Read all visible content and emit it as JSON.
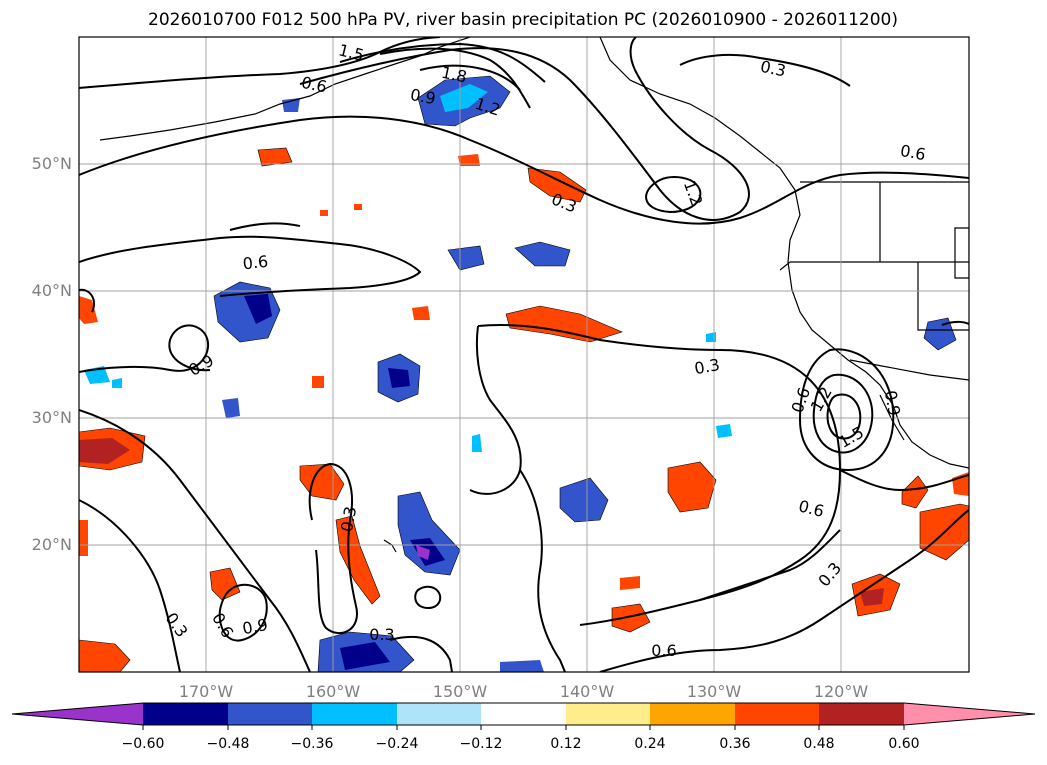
{
  "title": "2026010700 F012 500 hPa PV, river basin precipitation PC (2026010900 - 2026011200)",
  "lat_labels": [
    "50°N",
    "40°N",
    "30°N",
    "20°N"
  ],
  "lon_labels": [
    "170°W",
    "160°W",
    "150°W",
    "140°W",
    "130°W",
    "120°W"
  ],
  "contour_labels": [
    "0.3",
    "0.6",
    "0.9",
    "1.2",
    "1.5",
    "1.8"
  ],
  "colorbar": {
    "colors": [
      "#9933cc",
      "#00008b",
      "#3355cc",
      "#00bfff",
      "#aee3fa",
      "#ffffff",
      "#ffec8b",
      "#ffa500",
      "#ff4500",
      "#b22222",
      "#ff8fab"
    ],
    "tick_labels": [
      "−0.60",
      "−0.48",
      "−0.36",
      "−0.24",
      "−0.12",
      "0.12",
      "0.24",
      "0.36",
      "0.48",
      "0.60"
    ]
  },
  "chart_data": {
    "type": "map",
    "projection": "plate carree",
    "lon_range": [
      -180,
      -110
    ],
    "lat_range": [
      10,
      60
    ],
    "grid": true,
    "fields": [
      {
        "field": "500 hPa PV",
        "kind": "contour",
        "levels": [
          0.3,
          0.6,
          0.9,
          1.2,
          1.5,
          1.8
        ]
      },
      {
        "field": "river basin precipitation PC",
        "kind": "filled contour",
        "levels": [
          -0.6,
          -0.48,
          -0.36,
          -0.24,
          -0.12,
          0.12,
          0.24,
          0.36,
          0.48,
          0.6
        ]
      }
    ]
  }
}
